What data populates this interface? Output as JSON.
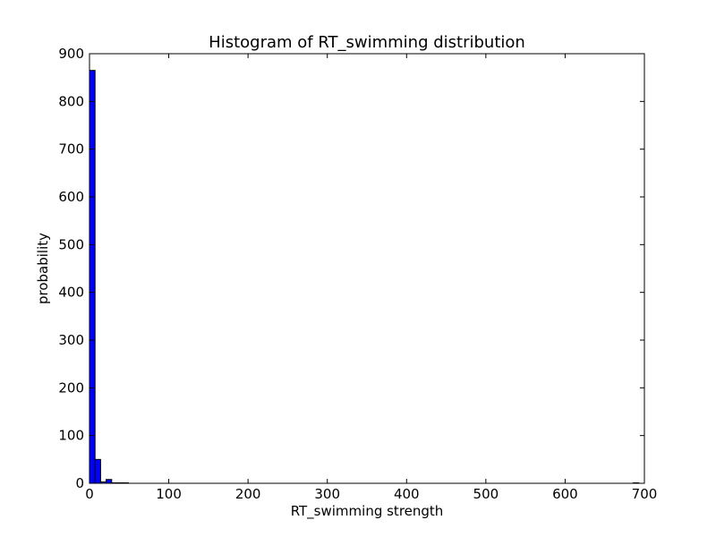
{
  "chart_data": {
    "type": "bar",
    "title": "Histogram of RT_swimming  distribution",
    "xlabel": "RT_swimming  strength",
    "ylabel": "probability",
    "xlim": [
      0,
      700
    ],
    "ylim": [
      0,
      900
    ],
    "xticks": [
      0,
      100,
      200,
      300,
      400,
      500,
      600,
      700
    ],
    "yticks": [
      0,
      100,
      200,
      300,
      400,
      500,
      600,
      700,
      800,
      900
    ],
    "bin_width": 7,
    "bins": [
      {
        "x0": 0,
        "x1": 7,
        "value": 865
      },
      {
        "x0": 7,
        "x1": 14,
        "value": 50
      },
      {
        "x0": 14,
        "x1": 21,
        "value": 3
      },
      {
        "x0": 21,
        "x1": 28,
        "value": 8
      },
      {
        "x0": 28,
        "x1": 35,
        "value": 1
      },
      {
        "x0": 35,
        "x1": 42,
        "value": 1
      },
      {
        "x0": 42,
        "x1": 49,
        "value": 1
      },
      {
        "x0": 686,
        "x1": 693,
        "value": 1
      }
    ],
    "bar_color": "#0000ff",
    "bar_edge_color": "#000000",
    "grid": false,
    "legend": false
  }
}
